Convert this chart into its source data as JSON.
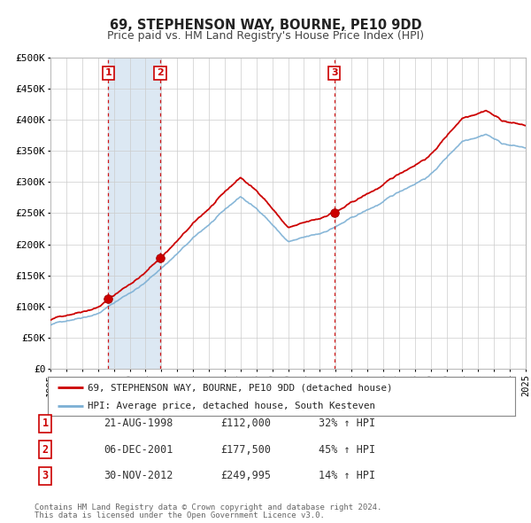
{
  "title": "69, STEPHENSON WAY, BOURNE, PE10 9DD",
  "subtitle": "Price paid vs. HM Land Registry's House Price Index (HPI)",
  "ylim": [
    0,
    500000
  ],
  "sale_color": "#cc0000",
  "hpi_color": "#7bafd4",
  "vline_color": "#cc0000",
  "dot_color": "#cc0000",
  "background_color": "#ffffff",
  "grid_color": "#cccccc",
  "shaded_region_color": "#dce8f3",
  "transactions": [
    {
      "num": 1,
      "date": "21-AUG-1998",
      "year": 1998.64,
      "price": 112000,
      "pct": "32%",
      "dir": "↑"
    },
    {
      "num": 2,
      "date": "06-DEC-2001",
      "year": 2001.92,
      "price": 177500,
      "pct": "45%",
      "dir": "↑"
    },
    {
      "num": 3,
      "date": "30-NOV-2012",
      "year": 2012.92,
      "price": 249995,
      "pct": "14%",
      "dir": "↑"
    }
  ],
  "legend_entries": [
    "69, STEPHENSON WAY, BOURNE, PE10 9DD (detached house)",
    "HPI: Average price, detached house, South Kesteven"
  ],
  "footer_lines": [
    "Contains HM Land Registry data © Crown copyright and database right 2024.",
    "This data is licensed under the Open Government Licence v3.0."
  ]
}
